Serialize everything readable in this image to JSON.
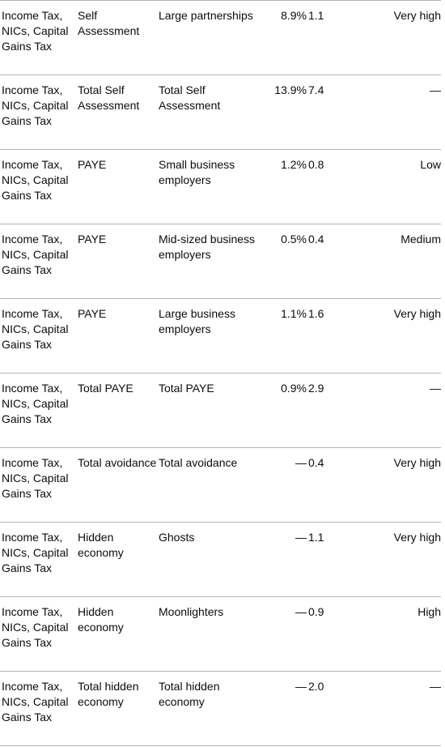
{
  "rows": [
    {
      "tax": "Income Tax, NICs, Capital Gains Tax",
      "type": "Self Assessment",
      "group": "Large partnerships",
      "pct": "8.9%",
      "bn": "1.1",
      "confidence": "Very high"
    },
    {
      "tax": "Income Tax, NICs, Capital Gains Tax",
      "type": "Total Self Assessment",
      "group": "Total Self Assessment",
      "pct": "13.9%",
      "bn": "7.4",
      "confidence": "—"
    },
    {
      "tax": "Income Tax, NICs, Capital Gains Tax",
      "type": "PAYE",
      "group": "Small business employers",
      "pct": "1.2%",
      "bn": "0.8",
      "confidence": "Low"
    },
    {
      "tax": "Income Tax, NICs, Capital Gains Tax",
      "type": "PAYE",
      "group": "Mid-sized business employers",
      "pct": "0.5%",
      "bn": "0.4",
      "confidence": "Medium"
    },
    {
      "tax": "Income Tax, NICs, Capital Gains Tax",
      "type": "PAYE",
      "group": "Large business employers",
      "pct": "1.1%",
      "bn": "1.6",
      "confidence": "Very high"
    },
    {
      "tax": "Income Tax, NICs, Capital Gains Tax",
      "type": "Total PAYE",
      "group": "Total PAYE",
      "pct": "0.9%",
      "bn": "2.9",
      "confidence": "—"
    },
    {
      "tax": "Income Tax, NICs, Capital Gains Tax",
      "type": "Total avoidance",
      "group": "Total avoidance",
      "pct": "—",
      "bn": "0.4",
      "confidence": "Very high"
    },
    {
      "tax": "Income Tax, NICs, Capital Gains Tax",
      "type": "Hidden economy",
      "group": "Ghosts",
      "pct": "—",
      "bn": "1.1",
      "confidence": "Very high"
    },
    {
      "tax": "Income Tax, NICs, Capital Gains Tax",
      "type": "Hidden economy",
      "group": "Moonlighters",
      "pct": "—",
      "bn": "0.9",
      "confidence": "High"
    },
    {
      "tax": "Income Tax, NICs, Capital Gains Tax",
      "type": "Total hidden economy",
      "group": "Total hidden economy",
      "pct": "—",
      "bn": "2.0",
      "confidence": "—"
    }
  ]
}
